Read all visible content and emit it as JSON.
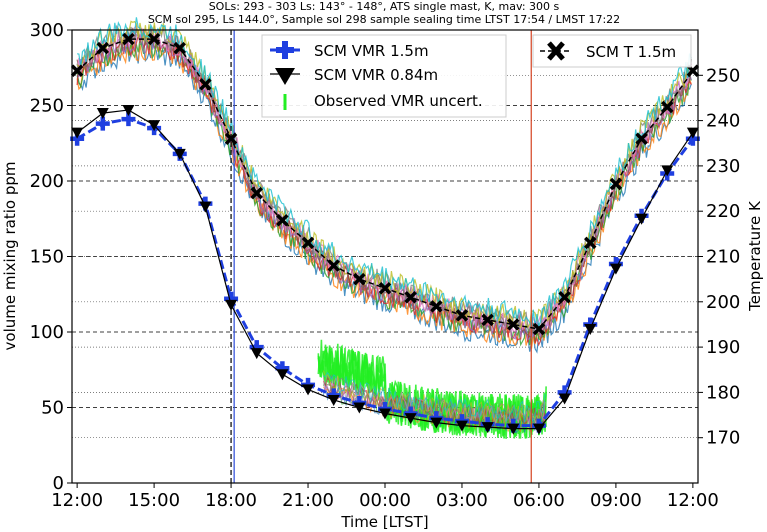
{
  "chart_data": {
    "type": "line",
    "title_line1": "SOLs: 293 - 303  Ls: 143° - 148°, ATS single mast, K,  mav: 300 s",
    "title_line2": "SCM sol 295, Ls 144.0°, Sample sol 298 sample sealing time LTST 17:54 / LMST 17:22",
    "xlabel": "Time [LTST]",
    "ylabel": "volume mixing ratio ppm",
    "ylabel_right": "Temperature K",
    "x_ticks": [
      "12:00",
      "15:00",
      "18:00",
      "21:00",
      "00:00",
      "03:00",
      "06:00",
      "09:00",
      "12:00"
    ],
    "x_range_hours": [
      11.8,
      36.2
    ],
    "y_ticks": [
      0,
      50,
      100,
      150,
      200,
      250,
      300
    ],
    "ylim": [
      0,
      300
    ],
    "y2_ticks": [
      170,
      180,
      190,
      200,
      210,
      220,
      230,
      240,
      250
    ],
    "y2lim": [
      160,
      260
    ],
    "legend_left": [
      "SCM VMR 1.5m",
      "SCM VMR 0.84m",
      "Observed VMR uncert."
    ],
    "legend_right": [
      "SCM T 1.5m"
    ],
    "vlines_hours": [
      {
        "x": 18.0,
        "color": "#000000",
        "style": "dashed"
      },
      {
        "x": 18.12,
        "color": "#2a4ad8",
        "style": "solid"
      },
      {
        "x": 29.7,
        "color": "#d44020",
        "style": "solid"
      }
    ],
    "series": [
      {
        "name": "SCM VMR 1.5m",
        "color": "#1f3fe0",
        "axis": "left",
        "x": [
          12.0,
          13.0,
          14.0,
          15.0,
          16.0,
          17.0,
          18.0,
          19.0,
          20.0,
          21.0,
          22.0,
          23.0,
          24.0,
          25.0,
          26.0,
          27.0,
          28.0,
          29.0,
          30.0,
          31.0,
          32.0,
          33.0,
          34.0,
          35.0,
          36.0
        ],
        "values": [
          228,
          238,
          241,
          235,
          218,
          185,
          122,
          90,
          76,
          65,
          58,
          53,
          49,
          46,
          43,
          41,
          39,
          38,
          38,
          60,
          105,
          145,
          177,
          205,
          228
        ]
      },
      {
        "name": "SCM VMR 0.84m",
        "color": "#000000",
        "axis": "left",
        "x": [
          12.0,
          13.0,
          14.0,
          15.0,
          16.0,
          17.0,
          18.0,
          19.0,
          20.0,
          21.0,
          22.0,
          23.0,
          24.0,
          25.0,
          26.0,
          27.0,
          28.0,
          29.0,
          30.0,
          31.0,
          32.0,
          33.0,
          34.0,
          35.0,
          36.0
        ],
        "values": [
          232,
          245,
          247,
          237,
          218,
          183,
          118,
          86,
          72,
          62,
          55,
          50,
          46,
          43,
          40,
          38,
          37,
          36,
          36,
          56,
          102,
          142,
          175,
          207,
          232
        ]
      },
      {
        "name": "SCM T 1.5m",
        "color": "#000000",
        "axis": "right",
        "x": [
          12.0,
          13.0,
          14.0,
          15.0,
          16.0,
          17.0,
          18.0,
          19.0,
          20.0,
          21.0,
          22.0,
          23.0,
          24.0,
          25.0,
          26.0,
          27.0,
          28.0,
          29.0,
          30.0,
          31.0,
          32.0,
          33.0,
          34.0,
          35.0,
          36.0
        ],
        "values": [
          251,
          256,
          258,
          258,
          256,
          248,
          236,
          224,
          218,
          213,
          208,
          205,
          203,
          201,
          199,
          197,
          196,
          195,
          194,
          201,
          213,
          226,
          236,
          243,
          251
        ]
      }
    ]
  }
}
